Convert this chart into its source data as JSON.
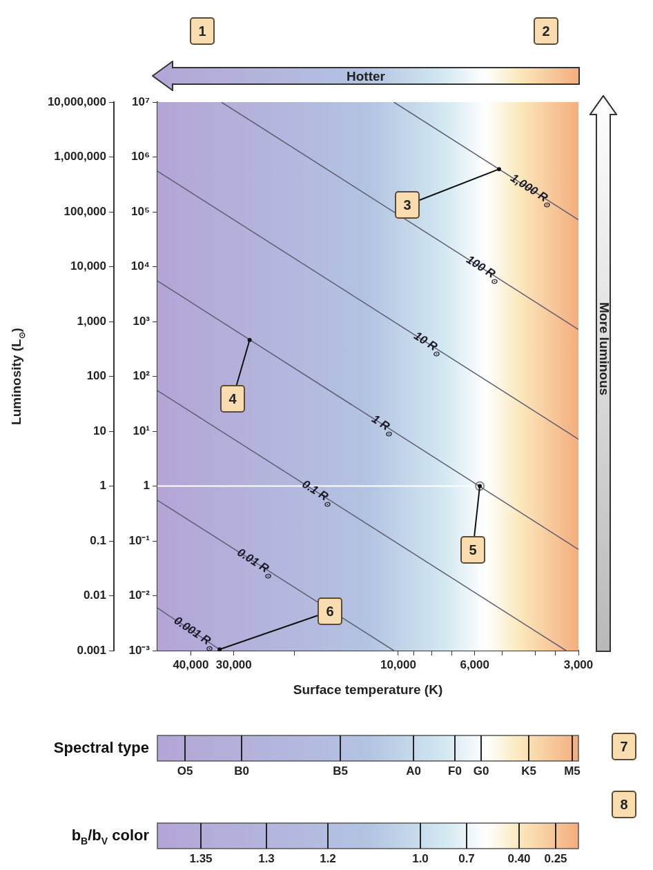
{
  "chart_data": {
    "type": "line",
    "xlabel": "Surface temperature (K)",
    "ylabel": "Luminosity (L$_{⊙}$)",
    "xlim": [
      50000,
      3000
    ],
    "xticks": [
      {
        "value": 40000,
        "label": "40,000"
      },
      {
        "value": 30000,
        "label": "30,000"
      },
      {
        "value": 20000,
        "label": null
      },
      {
        "value": 10000,
        "label": "10,000"
      },
      {
        "value": 9000,
        "label": null
      },
      {
        "value": 8000,
        "label": null
      },
      {
        "value": 7000,
        "label": null
      },
      {
        "value": 6000,
        "label": "6,000"
      },
      {
        "value": 5000,
        "label": null
      },
      {
        "value": 4000,
        "label": null
      },
      {
        "value": 3500,
        "label": null
      },
      {
        "value": 3000,
        "label": "3,000"
      }
    ],
    "ylim": [
      0.001,
      10000000
    ],
    "yticks": [
      {
        "value": 10000000,
        "label": "10,000,000"
      },
      {
        "value": 1000000,
        "label": "1,000,000"
      },
      {
        "value": 100000,
        "label": "100,000"
      },
      {
        "value": 10000,
        "label": "10,000"
      },
      {
        "value": 1000,
        "label": "1,000"
      },
      100,
      10,
      1,
      0.1,
      0.01,
      0.001
    ],
    "log": "xy",
    "grid": false,
    "legend": false,
    "series": [
      {
        "name": "1,000 R$_{⊙}$",
        "color": "#5e5e70",
        "x": [
          10300,
          3000
        ],
        "values": [
          10000000,
          71500
        ]
      },
      {
        "name": "100 R$_{⊙}$",
        "color": "#5e5e70",
        "x": [
          32600,
          3000
        ],
        "values": [
          10000000,
          715
        ]
      },
      {
        "name": "10 R$_{⊙}$",
        "color": "#5e5e70",
        "x": [
          50000,
          3000
        ],
        "values": [
          552000,
          7.15
        ]
      },
      {
        "name": "1 R$_{⊙}$",
        "color": "#5e5e70",
        "x": [
          50000,
          3000
        ],
        "values": [
          5520,
          0.07
        ]
      },
      {
        "name": "0.1 R$_{⊙}$",
        "color": "#5e5e70",
        "x": [
          50000,
          3260
        ],
        "values": [
          55.2,
          0.001
        ]
      },
      {
        "name": "0.01 R$_{⊙}$",
        "color": "#5e5e70",
        "x": [
          50000,
          10300
        ],
        "values": [
          0.552,
          0.001
        ]
      },
      {
        "name": "0.001 R$_{⊙}$",
        "color": "#5e5e70",
        "x": [
          50000,
          32600
        ],
        "values": [
          0.006,
          0.001
        ]
      },
      {
        "type": "scatter",
        "marker": "circle",
        "color": "#8a8a8a",
        "x": [
          5800
        ],
        "values": [
          1
        ]
      }
    ],
    "ref_lines": [
      {
        "axis": "y",
        "value": 1,
        "color": "#ffffff"
      },
      {
        "axis": "x",
        "value": 5800,
        "color": "#ffffff"
      }
    ],
    "annotations": [
      "1",
      "2",
      "Hotter",
      "More luminous",
      "7",
      "8",
      "Spectral type",
      "O5",
      "B0",
      "B5",
      "A0",
      "F0",
      "G0",
      "K5",
      "M5",
      "b$_{B}$/b$_{V}$ color",
      "1.35",
      "1.3",
      "1.2",
      "1.0",
      "0.7",
      "0.40",
      "0.25",
      "10⁷",
      "10⁶",
      "10⁵",
      "10⁴",
      "10³",
      "10²",
      "10¹",
      "1",
      "10⁻¹",
      "10⁻²",
      "10⁻³",
      {
        "text": "3",
        "x": 5100,
        "y": 600000
      },
      {
        "text": "4",
        "x": 27000,
        "y": 460
      },
      {
        "text": "5",
        "x": 5800,
        "y": 1
      },
      {
        "text": "6",
        "x": 33000,
        "y": 0.00105
      }
    ]
  }
}
